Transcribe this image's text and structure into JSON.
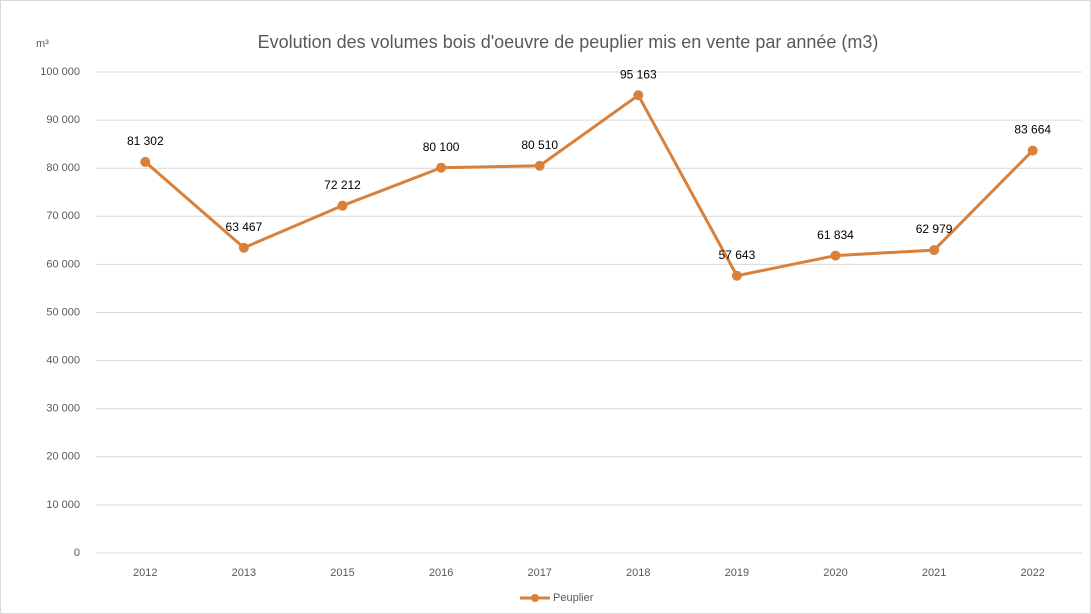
{
  "chart_data": {
    "type": "line",
    "title": "Evolution des volumes bois d'oeuvre de peuplier mis en vente par année (m3)",
    "y_axis_label": "m³",
    "categories": [
      "2012",
      "2013",
      "2015",
      "2016",
      "2017",
      "2018",
      "2019",
      "2020",
      "2021",
      "2022"
    ],
    "series": [
      {
        "name": "Peuplier",
        "color": "#d9813a",
        "values": [
          81302,
          63467,
          72212,
          80100,
          80510,
          95163,
          57643,
          61834,
          62979,
          83664
        ],
        "value_labels": [
          "81 302",
          "63 467",
          "72 212",
          "80 100",
          "80 510",
          "95 163",
          "57 643",
          "61 834",
          "62 979",
          "83 664"
        ]
      }
    ],
    "ylim": [
      0,
      100000
    ],
    "yticks": [
      0,
      {
        "value": 10000,
        "label": "10 000"
      },
      {
        "value": 20000,
        "label": "20 000"
      },
      {
        "value": 30000,
        "label": "30 000"
      },
      {
        "value": 40000,
        "label": "40 000"
      },
      {
        "value": 50000,
        "label": "50 000"
      },
      {
        "value": 60000,
        "label": "60 000"
      },
      {
        "value": 70000,
        "label": "70 000"
      },
      {
        "value": 80000,
        "label": "80 000"
      },
      {
        "value": 90000,
        "label": "90 000"
      },
      {
        "value": 100000,
        "label": "100 000"
      }
    ],
    "grid": true,
    "legend": "bottom"
  }
}
